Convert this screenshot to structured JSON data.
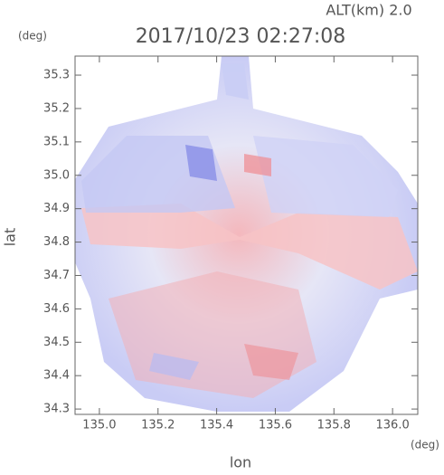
{
  "chart_data": {
    "type": "image",
    "title": "2017/10/23 02:27:08",
    "annotation": "ALT(km)  2.0",
    "x_label": "lon",
    "y_label": "lat",
    "x_unit": "(deg)",
    "y_unit": "(deg)",
    "xlim": [
      134.917,
      136.086
    ],
    "ylim": [
      34.284,
      35.357
    ],
    "xticks": [
      {
        "value": 135,
        "label": "135.0"
      },
      135.2,
      135.4,
      135.6,
      135.8,
      {
        "value": 136,
        "label": "136.0"
      }
    ],
    "yticks": [
      34.3,
      34.4,
      34.5,
      34.6,
      34.7,
      34.8,
      34.9,
      {
        "value": 35,
        "label": "35.0"
      },
      35.1,
      35.2,
      35.3
    ]
  }
}
